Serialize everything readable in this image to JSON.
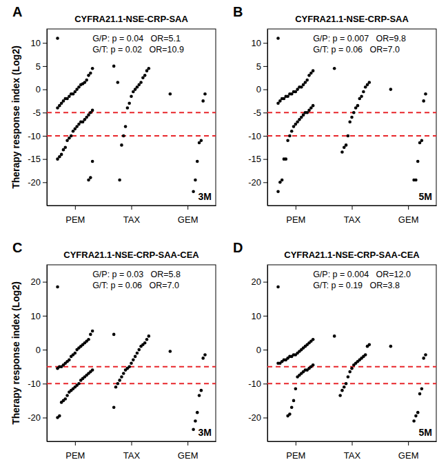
{
  "chart_data": [
    {
      "type": "strip",
      "panel": "A",
      "title": "CYFRA21.1-NSE-CRP-SAA",
      "y_label": "Therapy response index (Log2)",
      "annotations": [
        "G/P: p = 0.04   OR=5.1",
        "G/T: p = 0.02   OR=10.9"
      ],
      "period_label": "3M",
      "categories": [
        "PEM",
        "TAX",
        "GEM"
      ],
      "values": [
        [
          11,
          4.5,
          3.5,
          3,
          2,
          1.5,
          1.2,
          1,
          0.5,
          0,
          -0.5,
          -1,
          -1,
          -1.5,
          -2,
          -2,
          -2.5,
          -3,
          -3.5,
          -4,
          -4.5,
          -5,
          -5.5,
          -6,
          -6.5,
          -7,
          -7,
          -7.5,
          -8,
          -8.5,
          -9,
          -10,
          -10.5,
          -11,
          -12.5,
          -13,
          -14,
          -14.5,
          -15,
          -15.5,
          -19,
          -19.5
        ],
        [
          5,
          4.5,
          4,
          3,
          2.5,
          1.5,
          1,
          0.5,
          0,
          -0.5,
          -1.5,
          -3,
          -4,
          -8,
          -10,
          -12,
          -19.5,
          1.5
        ],
        [
          -1,
          -1,
          -2.5,
          -11,
          -11.5,
          -15.5,
          -19.5,
          -22
        ]
      ],
      "color": "#000000",
      "reference_lines": [
        -5,
        -10
      ],
      "reference_color": "#e8262b",
      "ylim": [
        -25,
        13
      ],
      "yticks": [
        -20,
        -15,
        -10,
        -5,
        0,
        5,
        10
      ]
    },
    {
      "type": "strip",
      "panel": "B",
      "title": "CYFRA21.1-NSE-CRP-SAA",
      "annotations": [
        "G/P: p = 0.007   OR=9.8",
        "G/T: p = 0.06   OR=7.0"
      ],
      "period_label": "5M",
      "categories": [
        "PEM",
        "TAX",
        "GEM"
      ],
      "values": [
        [
          11,
          4,
          3.5,
          3,
          2,
          1.5,
          1,
          0.5,
          0.5,
          0,
          -0.5,
          -0.5,
          -1,
          -1,
          -1.5,
          -1.5,
          -2,
          -2,
          -2.5,
          -3,
          -3.5,
          -4,
          -4.5,
          -5,
          -5,
          -5.5,
          -6,
          -6.5,
          -7,
          -7.5,
          -8,
          -9,
          -10,
          -11,
          -15,
          -15,
          -19.5,
          -20,
          -22
        ],
        [
          4.5,
          1.5,
          1,
          0.5,
          -0.5,
          -1.5,
          -2,
          -3.5,
          -4,
          -5,
          -6,
          -7,
          -10,
          -12,
          -12.5,
          -13.5
        ],
        [
          0,
          -1,
          -2.5,
          -11,
          -11.5,
          -15.5,
          -19.5,
          -19.5
        ]
      ],
      "color": "#000000",
      "reference_lines": [
        -5,
        -10
      ],
      "reference_color": "#e8262b",
      "ylim": [
        -25,
        13
      ],
      "yticks": [
        -20,
        -15,
        -10,
        -5,
        0,
        5,
        10
      ]
    },
    {
      "type": "strip",
      "panel": "C",
      "title": "CYFRA21.1-NSE-CRP-SAA-CEA",
      "y_label": "Therapy response index (Log2)",
      "annotations": [
        "G/P: p = 0.03   OR=5.8",
        "G/T: p = 0.06   OR=7.0"
      ],
      "period_label": "3M",
      "categories": [
        "PEM",
        "TAX",
        "GEM"
      ],
      "values": [
        [
          18.5,
          5.5,
          4.5,
          3,
          2.5,
          2,
          1.5,
          1,
          0.5,
          0,
          -1,
          -1.5,
          -2,
          -3,
          -3.5,
          -4,
          -4.5,
          -5,
          -5,
          -5.5,
          -6,
          -6.5,
          -7,
          -7.5,
          -8,
          -8.5,
          -9,
          -10,
          -10.5,
          -11,
          -11.5,
          -12,
          -12.5,
          -13.5,
          -14.5,
          -15,
          -15.5,
          -19.5,
          -20
        ],
        [
          4.5,
          4,
          3,
          2,
          1.5,
          1,
          0,
          -1,
          -2,
          -3,
          -4,
          -5,
          -5.5,
          -6,
          -7,
          -8,
          -9,
          -10,
          -11,
          -17
        ],
        [
          -0.5,
          -1.5,
          -2.5,
          -12,
          -13.5,
          -18.5,
          -21,
          -23.5
        ]
      ],
      "color": "#000000",
      "reference_lines": [
        -5,
        -10
      ],
      "reference_color": "#e8262b",
      "ylim": [
        -27,
        25
      ],
      "yticks": [
        -20,
        -10,
        0,
        10,
        20
      ]
    },
    {
      "type": "strip",
      "panel": "D",
      "title": "CYFRA21.1-NSE-CRP-SAA-CEA",
      "annotations": [
        "G/P: p = 0.004   OR=12.0",
        "G/T: p = 0.19   OR=3.8"
      ],
      "period_label": "5M",
      "categories": [
        "PEM",
        "TAX",
        "GEM"
      ],
      "values": [
        [
          18.5,
          3,
          2.5,
          2,
          1.5,
          1,
          0.5,
          0,
          -0.5,
          -1,
          -1.5,
          -1.5,
          -2,
          -2,
          -2.5,
          -3,
          -3,
          -3.5,
          -4,
          -4,
          -4.5,
          -5,
          -5.5,
          -6,
          -6,
          -6.5,
          -7,
          -7.5,
          -8,
          -11.5,
          -15,
          -17,
          -19,
          -19.5
        ],
        [
          4,
          1.5,
          1,
          -1.5,
          -2,
          -2.5,
          -3,
          -3.5,
          -4,
          -4.5,
          -5.5,
          -6.5,
          -8,
          -10,
          -11,
          -12,
          -13.5
        ],
        [
          1,
          -1.5,
          -2.5,
          -11.5,
          -13,
          -18.5,
          -19.5,
          -21
        ]
      ],
      "color": "#000000",
      "reference_lines": [
        -5,
        -10
      ],
      "reference_color": "#e8262b",
      "ylim": [
        -27,
        25
      ],
      "yticks": [
        -20,
        -10,
        0,
        10,
        20
      ]
    }
  ]
}
